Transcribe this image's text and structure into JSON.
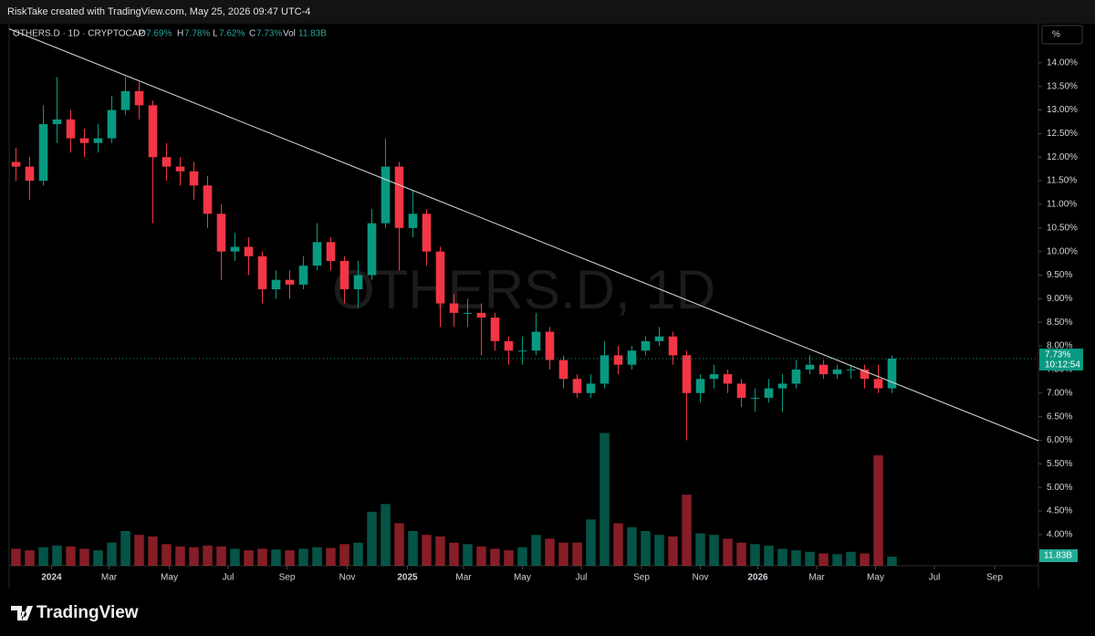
{
  "header": "RiskTake created with TradingView.com, May 25, 2026 09:47 UTC-4",
  "footer_logo": "TradingView",
  "chart_data": {
    "type": "candlestick",
    "legend": {
      "symbol": "OTHERS.D · 1D · CRYPTOCAP",
      "open_label": "O",
      "open": "7.69%",
      "high_label": "H",
      "high": "7.78%",
      "low_label": "L",
      "low": "7.62%",
      "close_label": "C",
      "close": "7.73%",
      "volume_label": "Vol",
      "volume": "11.83B"
    },
    "watermark": "OTHERS.D, 1D",
    "scale_button": "%",
    "price_tag": "7.73%",
    "countdown": "10:12:54",
    "volume_tag": "11.83B",
    "categories": [
      null,
      null,
      null,
      null,
      null,
      null,
      null,
      null,
      null,
      null,
      null,
      null,
      null,
      null,
      null,
      null,
      null,
      null,
      null,
      null,
      null,
      null,
      null,
      null,
      null,
      null,
      null,
      null,
      null,
      null,
      null,
      null,
      null,
      null,
      null,
      null,
      null,
      null,
      null,
      null,
      null,
      null,
      null,
      null,
      null,
      null,
      null,
      null,
      null,
      null,
      null,
      null,
      null,
      null,
      null,
      null,
      null,
      null,
      null,
      null,
      null,
      null,
      null,
      null,
      null
    ],
    "ohlc": {
      "open": [
        11.9,
        11.8,
        11.5,
        12.7,
        12.8,
        12.4,
        12.3,
        12.4,
        13.0,
        13.4,
        13.1,
        12.0,
        11.8,
        11.7,
        11.4,
        10.8,
        10.0,
        10.1,
        9.9,
        9.2,
        9.4,
        9.3,
        9.7,
        10.2,
        9.8,
        9.2,
        9.5,
        10.6,
        11.8,
        10.5,
        10.8,
        10.0,
        8.9,
        8.7,
        8.7,
        8.6,
        8.1,
        7.9,
        7.9,
        8.3,
        7.7,
        7.3,
        7.0,
        7.2,
        7.8,
        7.6,
        7.9,
        8.1,
        8.2,
        7.8,
        7.0,
        7.3,
        7.4,
        7.2,
        6.9,
        6.9,
        7.1,
        7.2,
        7.5,
        7.6,
        7.4,
        7.5,
        7.5,
        7.3,
        7.1
      ],
      "high": [
        12.2,
        12.0,
        13.1,
        13.7,
        13.0,
        12.6,
        12.7,
        13.3,
        13.7,
        13.6,
        13.2,
        12.3,
        12.0,
        11.9,
        11.6,
        11.0,
        10.4,
        10.3,
        10.0,
        9.6,
        9.6,
        9.9,
        10.6,
        10.3,
        9.9,
        9.8,
        10.9,
        12.4,
        11.9,
        11.3,
        10.9,
        10.1,
        9.1,
        9.0,
        8.9,
        8.7,
        8.2,
        8.2,
        8.7,
        8.4,
        7.8,
        7.4,
        7.4,
        8.1,
        8.0,
        8.0,
        8.2,
        8.4,
        8.3,
        7.9,
        7.4,
        7.6,
        7.5,
        7.3,
        7.1,
        7.3,
        7.4,
        7.7,
        7.8,
        7.7,
        7.6,
        7.6,
        7.6,
        7.6,
        7.8
      ],
      "low": [
        11.5,
        11.1,
        11.4,
        12.3,
        12.1,
        12.0,
        12.1,
        12.3,
        12.9,
        12.8,
        10.6,
        11.5,
        11.4,
        11.1,
        10.5,
        9.4,
        9.8,
        9.5,
        8.9,
        9.0,
        9.0,
        9.2,
        9.6,
        9.6,
        8.9,
        8.8,
        9.4,
        10.5,
        9.6,
        10.3,
        9.7,
        8.4,
        8.4,
        8.4,
        7.8,
        7.9,
        7.6,
        7.6,
        7.8,
        7.5,
        7.1,
        6.9,
        6.9,
        7.1,
        7.4,
        7.5,
        7.8,
        8.0,
        7.6,
        6.0,
        6.8,
        7.1,
        7.0,
        6.7,
        6.6,
        6.8,
        6.6,
        7.1,
        7.4,
        7.3,
        7.3,
        7.3,
        7.1,
        7.0,
        7.0
      ],
      "close": [
        11.8,
        11.5,
        12.7,
        12.8,
        12.4,
        12.3,
        12.4,
        13.0,
        13.4,
        13.1,
        12.0,
        11.8,
        11.7,
        11.4,
        10.8,
        10.0,
        10.1,
        9.9,
        9.2,
        9.4,
        9.3,
        9.7,
        10.2,
        9.8,
        9.2,
        9.5,
        10.6,
        11.8,
        10.5,
        10.8,
        10.0,
        8.9,
        8.7,
        8.7,
        8.6,
        8.1,
        7.9,
        7.9,
        8.3,
        7.7,
        7.3,
        7.0,
        7.2,
        7.8,
        7.6,
        7.9,
        8.1,
        8.2,
        7.8,
        7.0,
        7.3,
        7.4,
        7.2,
        6.9,
        6.9,
        7.1,
        7.2,
        7.5,
        7.6,
        7.4,
        7.5,
        7.5,
        7.3,
        7.1,
        7.73
      ]
    },
    "up_color": "#089981",
    "down_color": "#f23645",
    "volume": {
      "axis": "y2",
      "values": [
        22,
        20,
        24,
        26,
        25,
        22,
        20,
        30,
        45,
        40,
        38,
        28,
        25,
        24,
        26,
        25,
        22,
        20,
        22,
        21,
        20,
        22,
        24,
        23,
        28,
        30,
        70,
        80,
        55,
        45,
        40,
        38,
        30,
        28,
        25,
        22,
        20,
        24,
        40,
        35,
        30,
        30,
        60,
        172,
        55,
        50,
        45,
        40,
        38,
        92,
        42,
        40,
        35,
        30,
        28,
        26,
        22,
        20,
        18,
        16,
        15,
        18,
        16,
        143,
        11.83
      ]
    },
    "trendline": {
      "x": [
        -0.5,
        74.7
      ],
      "y": [
        14.72,
        5.99
      ],
      "color": "#d9d9d9"
    },
    "xlim": [
      -0.5,
      74.7
    ],
    "xticks": [
      {
        "value": 2.6,
        "label": "2024"
      },
      {
        "value": 6.8,
        "label": "Mar"
      },
      {
        "value": 11.2,
        "label": "May"
      },
      {
        "value": 15.5,
        "label": "Jul"
      },
      {
        "value": 19.8,
        "label": "Sep"
      },
      {
        "value": 24.2,
        "label": "Nov"
      },
      {
        "value": 28.6,
        "label": "2025"
      },
      {
        "value": 32.7,
        "label": "Mar"
      },
      {
        "value": 37.0,
        "label": "May"
      },
      {
        "value": 41.3,
        "label": "Jul"
      },
      {
        "value": 45.7,
        "label": "Sep"
      },
      {
        "value": 50.0,
        "label": "Nov"
      },
      {
        "value": 54.2,
        "label": "2026"
      },
      {
        "value": 58.5,
        "label": "Mar"
      },
      {
        "value": 62.8,
        "label": "May"
      },
      {
        "value": 67.1,
        "label": "Jul"
      },
      {
        "value": 71.5,
        "label": "Sep"
      }
    ],
    "ylim": [
      3.34,
      14.79
    ],
    "yticks": [
      {
        "value": 4,
        "label": "4.00%"
      },
      {
        "value": 4.5,
        "label": "4.50%"
      },
      {
        "value": 5,
        "label": "5.00%"
      },
      {
        "value": 5.5,
        "label": "5.50%"
      },
      {
        "value": 6,
        "label": "6.00%"
      },
      {
        "value": 6.5,
        "label": "6.50%"
      },
      {
        "value": 7,
        "label": "7.00%"
      },
      {
        "value": 7.5,
        "label": "7.50%"
      },
      {
        "value": 8,
        "label": "8.00%"
      },
      {
        "value": 8.5,
        "label": "8.50%"
      },
      {
        "value": 9,
        "label": "9.00%"
      },
      {
        "value": 9.5,
        "label": "9.50%"
      },
      {
        "value": 10,
        "label": "10.00%"
      },
      {
        "value": 10.5,
        "label": "10.50%"
      },
      {
        "value": 11,
        "label": "11.00%"
      },
      {
        "value": 11.5,
        "label": "11.50%"
      },
      {
        "value": 12,
        "label": "12.00%"
      },
      {
        "value": 12.5,
        "label": "12.50%"
      },
      {
        "value": 13,
        "label": "13.00%"
      },
      {
        "value": 13.5,
        "label": "13.50%"
      },
      {
        "value": 14,
        "label": "14.00%"
      }
    ],
    "y2lim": [
      0,
      700
    ],
    "grid": false
  }
}
